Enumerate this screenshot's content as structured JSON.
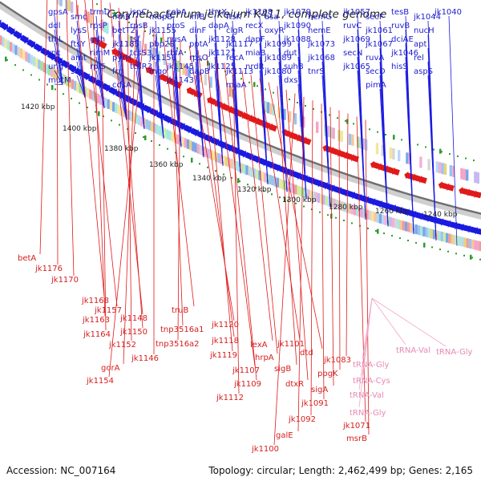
{
  "title": "Corynebacterium jeikeium K411, complete genome",
  "footer": {
    "accession": "Accession: NC_007164",
    "topology": "Topology: circular; Length: 2,462,499 bp; Genes: 2,165"
  },
  "colors": {
    "forward_strand": "#1a1ae0",
    "reverse_strand": "#e01a1a",
    "rna": "#f2a6c8",
    "tick_green": "#2e9b2e"
  },
  "scale_labels": [
    "1420 kbp",
    "1400 kbp",
    "1380 kbp",
    "1360 kbp",
    "1340 kbp",
    "1320 kbp",
    "1300 kbp",
    "1280 kbp",
    "1260 kbp",
    "1240 kbp"
  ],
  "forward_genes": [
    "gpsA",
    "ddl",
    "thiL",
    "rnc",
    "ung",
    "mutM",
    "smc",
    "lysS",
    "ftsY",
    "amt",
    "srp",
    "trmD",
    "rpsP",
    "gdh",
    "rimM",
    "rplS",
    "mhB",
    "betT2",
    "jk1185",
    "pyrH",
    "frr",
    "cdsA",
    "ispC",
    "rpsB",
    "tsf",
    "tcsS3",
    "tcsR3",
    "mapB",
    "jk1155",
    "pbp2B",
    "jk1156",
    "mqo",
    "cobA",
    "proS",
    "nusA",
    "rbfA",
    "jk1145",
    "jk1143",
    "infB",
    "dinF",
    "pptA",
    "rpsO",
    "dapB",
    "thyX",
    "dapA",
    "jk1128",
    "jk1127",
    "jk1125",
    "ftsK",
    "clgR",
    "jk1117",
    "recA",
    "jk1113",
    "miaA",
    "jk1108",
    "recX",
    "dapF",
    "miaB",
    "nrdR",
    "asa",
    "oxyR",
    "jk1099",
    "jk1089",
    "jk1080",
    "jk1079",
    "jk1090",
    "jk1088",
    "dut",
    "suhB",
    "dxs",
    "hemG",
    "hemE",
    "jk1073",
    "jk1068",
    "tnrS",
    "jk1057",
    "ruvC",
    "jk1069",
    "secN",
    "jk1065",
    "secF",
    "jk1061",
    "jk1067",
    "ruvA",
    "secD",
    "pimA",
    "tesB",
    "ruvB",
    "dciAE",
    "jk1046",
    "hisS",
    "jk1044",
    "nucH",
    "apt",
    "rel",
    "aspS",
    "jk1040"
  ],
  "reverse_genes": [
    "betA",
    "jk1176",
    "jk1170",
    "jk1168",
    "jk1157",
    "jk1163",
    "jk1164",
    "jk1148",
    "jk1150",
    "jk1152",
    "gorA",
    "jk1154",
    "jk1146",
    "truB",
    "tnp3516a1",
    "tnp3516a2",
    "jk1120",
    "jk1118",
    "jk1119",
    "jk1107",
    "jk1109",
    "jk1112",
    "lexA",
    "hrpA",
    "jk1101",
    "dtd",
    "sigB",
    "dtxR",
    "jk1100",
    "galE",
    "jk1092",
    "jk1091",
    "sigA",
    "ppgK",
    "jk1083",
    "jk1071",
    "msrB"
  ],
  "rna_genes": [
    "tRNA-Val",
    "tRNA-Gly",
    "tRNA-Gly",
    "tRNA-Cys",
    "tRNA-Val",
    "tRNA-Gly"
  ]
}
